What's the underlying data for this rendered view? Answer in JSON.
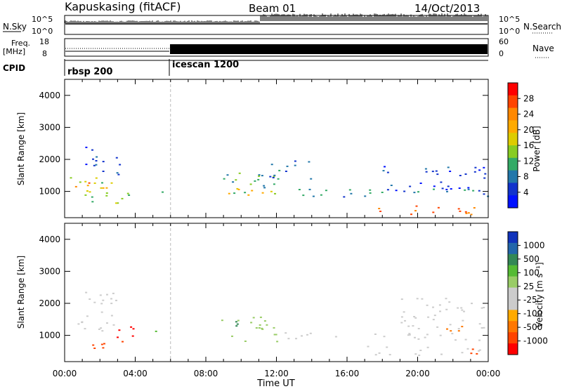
{
  "header": {
    "station": "Kapuskasing (fitACF)",
    "beam": "Beam 01",
    "date": "14/Oct/2013"
  },
  "noise_panel": {
    "left_label": "N.Sky",
    "right_label": "N.Search",
    "left_ticks": [
      "10^5",
      "10^0"
    ],
    "right_ticks": [
      "10^5",
      "10^0"
    ]
  },
  "freq_panel": {
    "left_label_1": "Freq.",
    "left_label_2": "[MHz]",
    "right_label": "Nave",
    "left_ticks": [
      "18",
      "8"
    ],
    "right_ticks": [
      "60",
      "0"
    ]
  },
  "cpid_panel": {
    "label": "CPID",
    "programs": [
      {
        "name": "rbsp 200",
        "start": "00:00"
      },
      {
        "name": "icescan 1200",
        "start": "06:00"
      }
    ]
  },
  "power_colorbar": {
    "title": "Power [dB]",
    "ticks": [
      "28",
      "24",
      "20",
      "16",
      "12",
      "8",
      "4"
    ],
    "colors": [
      "#ff0000",
      "#ff4400",
      "#ff8800",
      "#ffaa00",
      "#ddcc00",
      "#88cc22",
      "#33aa66",
      "#2277aa",
      "#1133cc",
      "#0011ff"
    ]
  },
  "velocity_colorbar": {
    "title": "Velocity [m s⁻¹]",
    "ticks": [
      "1000",
      "500",
      "100",
      "25",
      "-25",
      "-100",
      "-500",
      "-1000"
    ],
    "colors": [
      "#1133bb",
      "#2266aa",
      "#338855",
      "#55bb33",
      "#99cc66",
      "#cccccc",
      "#cccccc",
      "#ffaa00",
      "#ff7700",
      "#ff4400",
      "#ff0000"
    ]
  },
  "chart_data": {
    "type": "heatmap",
    "xlabel": "Time UT",
    "ylabel": "Slant Range [km]",
    "x_ticks": [
      "00:00",
      "04:00",
      "08:00",
      "12:00",
      "16:00",
      "20:00",
      "00:00"
    ],
    "y_ticks": [
      "1000",
      "2000",
      "3000",
      "4000"
    ],
    "x_range_hours": [
      0,
      24
    ],
    "y_range_km": [
      180,
      4500
    ],
    "program_boundary_hour": 6,
    "power_regions": [
      {
        "t0": 0.3,
        "t1": 2.8,
        "r0": 800,
        "r1": 1500,
        "level": 16
      },
      {
        "t0": 0.5,
        "t1": 2.0,
        "r0": 1100,
        "r1": 1350,
        "level": 24
      },
      {
        "t0": 1.0,
        "t1": 3.2,
        "r0": 1500,
        "r1": 2400,
        "level": 6
      },
      {
        "t0": 1.5,
        "t1": 3.8,
        "r0": 600,
        "r1": 1000,
        "level": 14
      },
      {
        "t0": 1.8,
        "t1": 3.2,
        "r0": 950,
        "r1": 1150,
        "level": 22
      },
      {
        "t0": 5.2,
        "t1": 5.8,
        "r0": 1000,
        "r1": 1300,
        "level": 10
      },
      {
        "t0": 8.8,
        "t1": 12.2,
        "r0": 800,
        "r1": 1600,
        "level": 12
      },
      {
        "t0": 9.2,
        "t1": 11.8,
        "r0": 850,
        "r1": 1200,
        "level": 20
      },
      {
        "t0": 11.5,
        "t1": 14.0,
        "r0": 1400,
        "r1": 2000,
        "level": 8
      },
      {
        "t0": 12.0,
        "t1": 24.0,
        "r0": 850,
        "r1": 1100,
        "level": 10
      },
      {
        "t0": 17.0,
        "t1": 23.5,
        "r0": 300,
        "r1": 600,
        "level": 26
      },
      {
        "t0": 18.0,
        "t1": 24.0,
        "r0": 1000,
        "r1": 1800,
        "level": 6
      }
    ],
    "velocity_regions": [
      {
        "t0": 0.3,
        "t1": 2.8,
        "r0": 1000,
        "r1": 1500,
        "level": 0
      },
      {
        "t0": 0.8,
        "t1": 3.0,
        "r0": 1600,
        "r1": 2500,
        "level": 0
      },
      {
        "t0": 1.3,
        "t1": 3.5,
        "r0": 600,
        "r1": 950,
        "level": -300
      },
      {
        "t0": 2.8,
        "t1": 4.0,
        "r0": 850,
        "r1": 1400,
        "level": -900
      },
      {
        "t0": 4.5,
        "t1": 5.5,
        "r0": 1000,
        "r1": 1200,
        "level": 150
      },
      {
        "t0": 8.8,
        "t1": 12.0,
        "r0": 800,
        "r1": 1600,
        "level": 80
      },
      {
        "t0": 9.3,
        "t1": 10.5,
        "r0": 1200,
        "r1": 1600,
        "level": 400
      },
      {
        "t0": 12.0,
        "t1": 24.0,
        "r0": 850,
        "r1": 1100,
        "level": 0
      },
      {
        "t0": 17.0,
        "t1": 23.5,
        "r0": 400,
        "r1": 700,
        "level": 0
      },
      {
        "t0": 22.0,
        "t1": 23.5,
        "r0": 400,
        "r1": 650,
        "level": -400
      },
      {
        "t0": 21.0,
        "t1": 22.5,
        "r0": 1000,
        "r1": 1400,
        "level": -200
      },
      {
        "t0": 19.0,
        "t1": 24.0,
        "r0": 1200,
        "r1": 2200,
        "level": 0
      }
    ]
  }
}
